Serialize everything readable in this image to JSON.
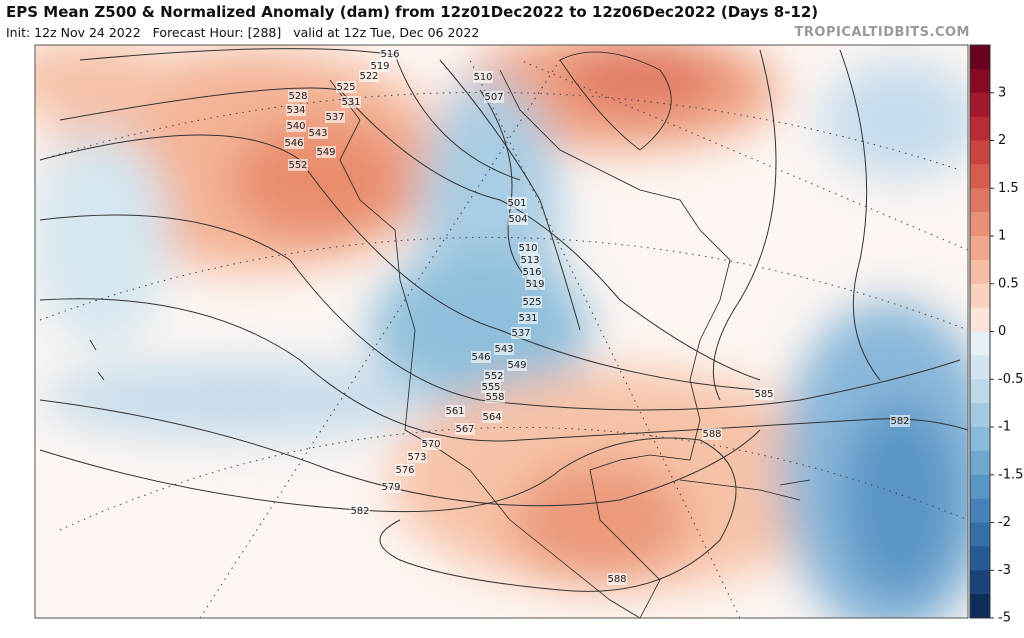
{
  "header": {
    "title": "EPS Mean Z500 & Normalized Anomaly (dam) from 12z01Dec2022 to 12z06Dec2022 (Days 8-12)",
    "init": "Init: 12z Nov 24 2022",
    "forecast_hour": "Forecast Hour: [288]",
    "valid": "valid at 12z Tue, Dec 06 2022",
    "watermark": "TROPICALTIDBITS.COM"
  },
  "map": {
    "contour_labels": [
      516,
      519,
      522,
      525,
      528,
      531,
      534,
      537,
      540,
      543,
      546,
      549,
      552,
      510,
      507,
      501,
      504,
      510,
      513,
      516,
      519,
      525,
      531,
      537,
      543,
      546,
      549,
      552,
      555,
      558,
      561,
      564,
      567,
      570,
      573,
      576,
      579,
      582,
      585,
      588,
      582,
      588
    ]
  },
  "colorbar": {
    "ticks": [
      3,
      2,
      1.5,
      1,
      0.5,
      0,
      -0.5,
      -1,
      -1.5,
      -2,
      -3,
      -5
    ],
    "colors": [
      "#67001f",
      "#870a24",
      "#a1192b",
      "#b72c35",
      "#c84440",
      "#d65d4b",
      "#e07760",
      "#e99175",
      "#f0a88c",
      "#f5bda4",
      "#f9d1bd",
      "#fce5d8",
      "#e6f0f7",
      "#d2e5f0",
      "#bcd9ea",
      "#a3cae2",
      "#89bada",
      "#6fa8cf",
      "#5896c6",
      "#4682b9",
      "#366ea8",
      "#275992",
      "#1a4377",
      "#0e2d58"
    ]
  }
}
